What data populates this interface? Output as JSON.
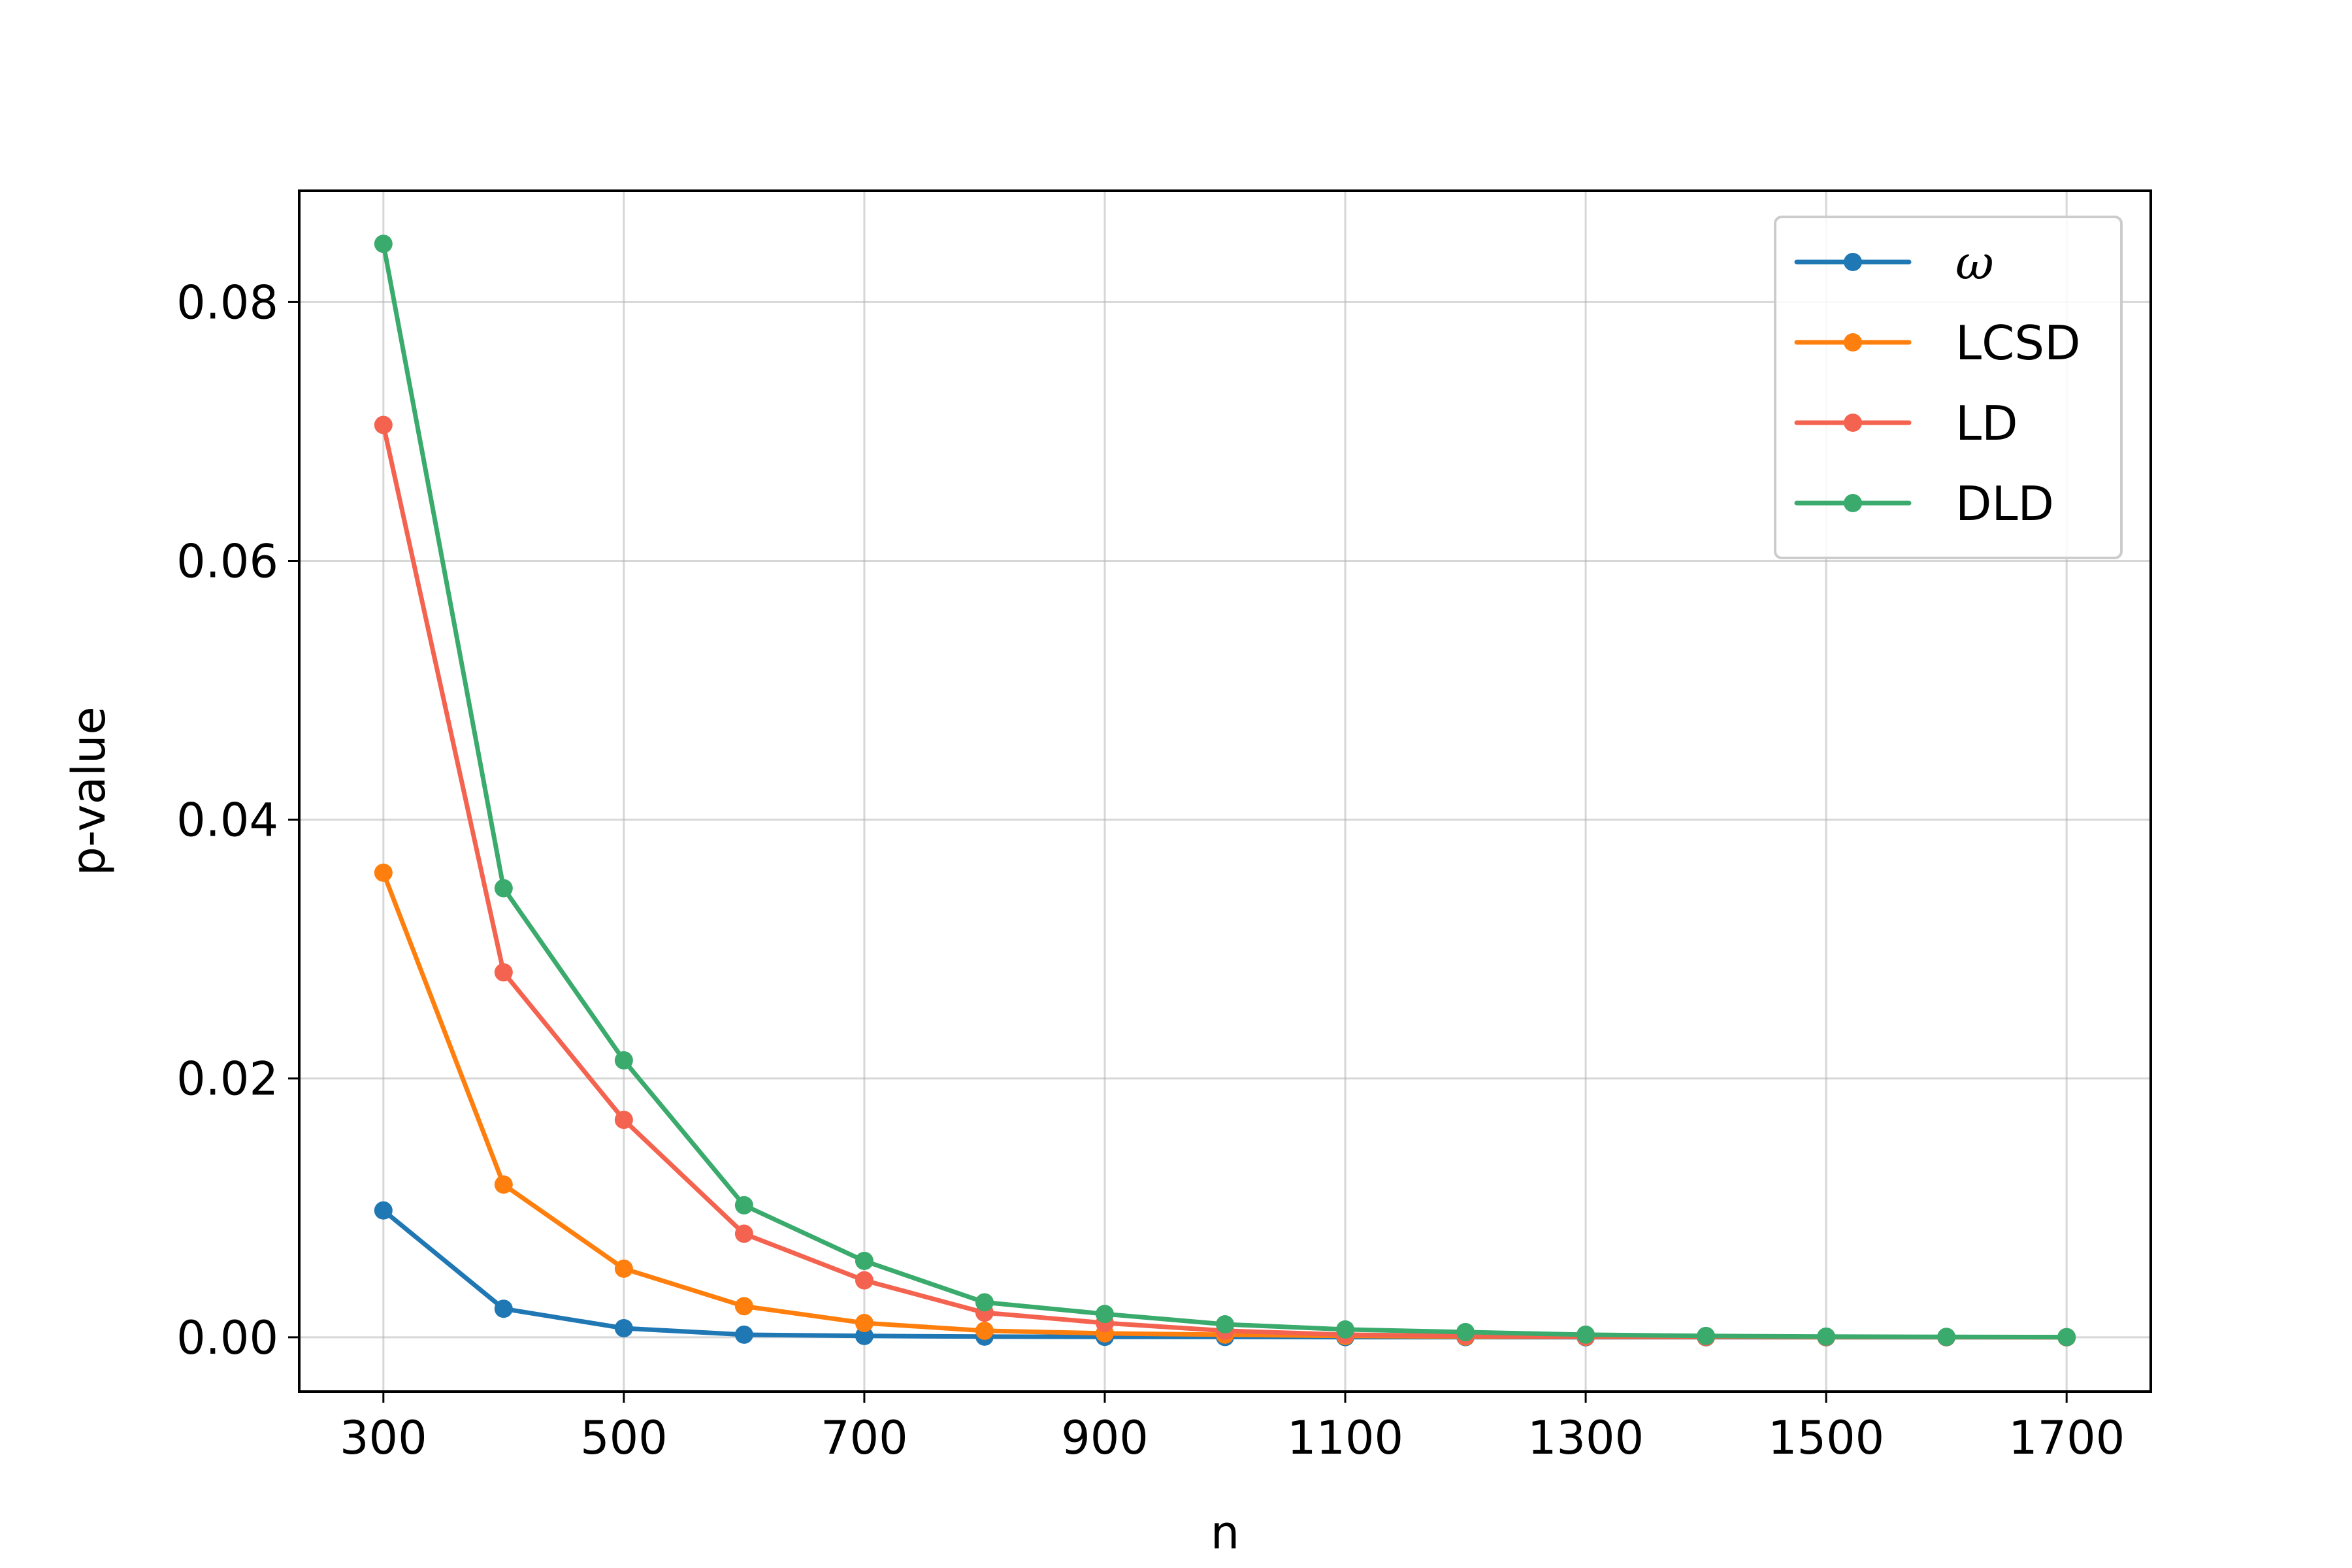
{
  "chart_data": {
    "type": "line",
    "title": "",
    "xlabel": "n",
    "ylabel": "p-value",
    "xlim": [
      230,
      1770
    ],
    "ylim": [
      -0.0042,
      0.0886
    ],
    "x_ticks": [
      300,
      500,
      700,
      900,
      1100,
      1300,
      1500,
      1700
    ],
    "x_tick_labels": [
      "300",
      "500",
      "700",
      "900",
      "1100",
      "1300",
      "1500",
      "1700"
    ],
    "y_ticks": [
      0.0,
      0.02,
      0.04,
      0.06,
      0.08
    ],
    "y_tick_labels": [
      "0.00",
      "0.02",
      "0.04",
      "0.06",
      "0.08"
    ],
    "grid": true,
    "legend_position": "top-right",
    "x": [
      300,
      400,
      500,
      600,
      700,
      800,
      900,
      1000,
      1100,
      1200,
      1300,
      1400,
      1500,
      1600,
      1700
    ],
    "series": [
      {
        "name": "ω",
        "color": "#1f77b4",
        "values": [
          0.0098,
          0.0022,
          0.0007,
          0.0002,
          0.0001,
          5e-05,
          3e-05,
          2e-05,
          1e-05,
          1e-05,
          0.0,
          0.0,
          0.0,
          0.0,
          0.0
        ]
      },
      {
        "name": "LCSD",
        "color": "#ff7f0e",
        "values": [
          0.0359,
          0.0118,
          0.0053,
          0.0024,
          0.0011,
          0.0005,
          0.0003,
          0.0002,
          0.0001,
          5e-05,
          3e-05,
          2e-05,
          1e-05,
          1e-05,
          0.0
        ]
      },
      {
        "name": "LD",
        "color": "#f4634f",
        "values": [
          0.0705,
          0.0282,
          0.0168,
          0.008,
          0.0044,
          0.0019,
          0.0011,
          0.0005,
          0.0002,
          0.0001,
          5e-05,
          3e-05,
          2e-05,
          1e-05,
          0.0
        ]
      },
      {
        "name": "DLD",
        "color": "#3aab6d",
        "values": [
          0.0845,
          0.0347,
          0.0214,
          0.0102,
          0.0059,
          0.0027,
          0.0018,
          0.001,
          0.0006,
          0.0004,
          0.0002,
          0.0001,
          5e-05,
          3e-05,
          1e-05
        ]
      }
    ]
  }
}
